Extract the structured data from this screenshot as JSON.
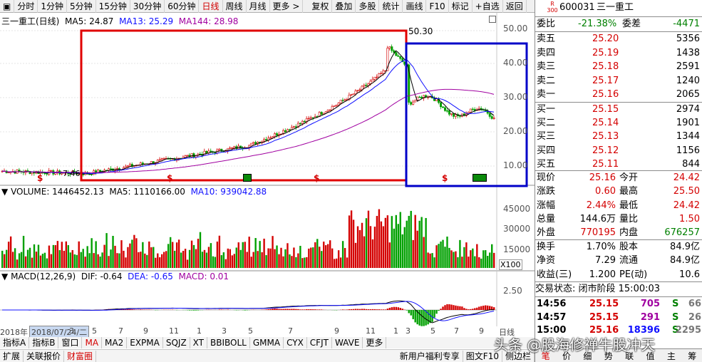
{
  "toolbar": {
    "items": [
      "分时",
      "1分钟",
      "5分钟",
      "15分钟",
      "30分钟",
      "60分钟",
      "日线",
      "周线",
      "月线",
      "更多 >"
    ],
    "right_items": [
      "复权",
      "叠加",
      "多股",
      "统计",
      "画线",
      "F10",
      "标记",
      "+自选",
      "返回"
    ]
  },
  "main": {
    "title": "三一重工(日线)",
    "ma5": "MA5: 24.87",
    "ma13": "MA13: 25.29",
    "ma144": "MA144: 28.98",
    "price_ticks": [
      "50.00",
      "40.00",
      "30.00",
      "20.00",
      "10.00"
    ],
    "high_label": "50.30",
    "low_label": "7.46"
  },
  "volume": {
    "label": "VOLUME: 1446452.13",
    "ma5": "MA5: 1110166.00",
    "ma10": "MA10: 939042.88",
    "ticks": [
      "45000",
      "30000",
      "15000"
    ],
    "unit": "X100"
  },
  "macd": {
    "label": "MACD(12,26,9)",
    "dif": "DIF: -0.64",
    "dea": "DEA: -0.65",
    "macd": "MACD: 0.01",
    "tick": "2.50"
  },
  "xaxis": {
    "year": "2018年",
    "date": "2018/07/24/二",
    "months": [
      "3",
      "5",
      "7",
      "9",
      "11",
      "1",
      "3",
      "5",
      "7",
      "9",
      "11",
      "1",
      "3",
      "5",
      "7",
      "9"
    ],
    "period": "日线"
  },
  "tabs": {
    "row1": [
      "指标A",
      "指标B",
      "窗口",
      "MA",
      "MA2",
      "EXPMA",
      "SQJZ",
      "XT",
      "BBIBOLL",
      "GMMA",
      "CYX",
      "CFJT",
      "WAVE",
      "更多"
    ],
    "row2": [
      "扩展",
      "关联报价",
      "财富圈"
    ],
    "row2_right": [
      "新用户福利专享",
      "图文F10",
      "侧边栏"
    ]
  },
  "quote": {
    "badge_r": "R",
    "badge_num": "300",
    "code": "600031",
    "name": "三一重工",
    "weibi_label": "委比",
    "weibi_val": "-21.38%",
    "weicha_label": "委差",
    "weicha_val": "-4471",
    "asks": [
      {
        "label": "卖五",
        "price": "25.20",
        "vol": "5356"
      },
      {
        "label": "卖四",
        "price": "25.19",
        "vol": "1438"
      },
      {
        "label": "卖三",
        "price": "25.18",
        "vol": "2591"
      },
      {
        "label": "卖二",
        "price": "25.17",
        "vol": "1240"
      },
      {
        "label": "卖一",
        "price": "25.16",
        "vol": "2065"
      }
    ],
    "bids": [
      {
        "label": "买一",
        "price": "25.15",
        "vol": "2974"
      },
      {
        "label": "买二",
        "price": "25.14",
        "vol": "1901"
      },
      {
        "label": "买三",
        "price": "25.13",
        "vol": "1344"
      },
      {
        "label": "买四",
        "price": "25.12",
        "vol": "1156"
      },
      {
        "label": "买五",
        "price": "25.11",
        "vol": "844"
      }
    ],
    "stats": [
      {
        "l1": "现价",
        "v1": "25.16",
        "l2": "今开",
        "v2": "24.42"
      },
      {
        "l1": "涨跌",
        "v1": "0.60",
        "l2": "最高",
        "v2": "25.50"
      },
      {
        "l1": "涨幅",
        "v1": "2.44%",
        "l2": "最低",
        "v2": "24.42"
      },
      {
        "l1": "总量",
        "v1": "144.6万",
        "l2": "量比",
        "v2": "1.50"
      },
      {
        "l1": "外盘",
        "v1": "770195",
        "l2": "内盘",
        "v2": "676257"
      }
    ],
    "stats2": [
      {
        "l1": "换手",
        "v1": "1.70%",
        "l2": "股本",
        "v2": "84.9亿"
      },
      {
        "l1": "净资",
        "v1": "7.29",
        "l2": "流通",
        "v2": "84.9亿"
      },
      {
        "l1": "收益(三)",
        "v1": "1.200",
        "l2": "PE(动)",
        "v2": "10.6"
      }
    ],
    "status": "交易状态: 闭市阶段 15:00:03",
    "ticks": [
      {
        "time": "14:56",
        "price": "25.15",
        "vol": "705",
        "bs": "S",
        "n": "66"
      },
      {
        "time": "14:57",
        "price": "25.15",
        "vol": "291",
        "bs": "S",
        "n": "26"
      },
      {
        "time": "15:00",
        "price": "25.16",
        "vol": "18396",
        "bs": "S",
        "n": "2295"
      }
    ],
    "bottom_tabs": [
      "笔",
      "价",
      "细",
      "势",
      "联",
      "值",
      "主",
      "筹"
    ]
  },
  "watermark": "头条 @股海修禅牛股冲天",
  "colors": {
    "up": "#d40000",
    "down": "#00a000",
    "ma5": "#000000",
    "ma13": "#1010ff",
    "ma144": "#a000a0",
    "box_red": "#e00000",
    "box_blue": "#0000c8"
  }
}
